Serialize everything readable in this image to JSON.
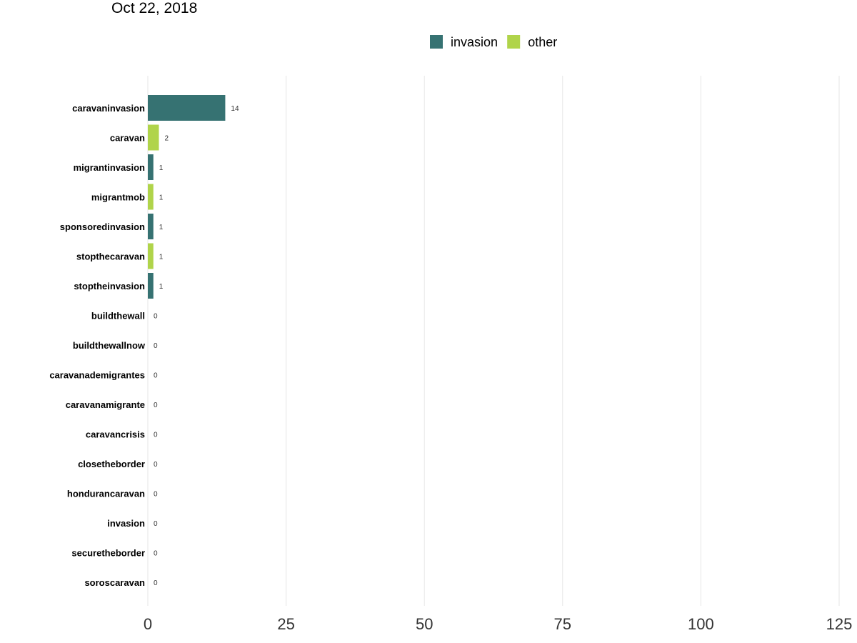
{
  "chart_data": {
    "type": "bar",
    "orientation": "horizontal",
    "title": "Oct 22, 2018",
    "xlim": [
      0,
      125
    ],
    "x_ticks": [
      0,
      25,
      50,
      75,
      100,
      125
    ],
    "grid": "vertical major gridlines",
    "legend_position": "top",
    "series": [
      {
        "name": "invasion",
        "color": "#367272"
      },
      {
        "name": "other",
        "color": "#b0d44a"
      }
    ],
    "bars": [
      {
        "category": "caravaninvasion",
        "value": 14,
        "group": "invasion"
      },
      {
        "category": "caravan",
        "value": 2,
        "group": "other"
      },
      {
        "category": "migrantinvasion",
        "value": 1,
        "group": "invasion"
      },
      {
        "category": "migrantmob",
        "value": 1,
        "group": "other"
      },
      {
        "category": "sponsoredinvasion",
        "value": 1,
        "group": "invasion"
      },
      {
        "category": "stopthecaravan",
        "value": 1,
        "group": "other"
      },
      {
        "category": "stoptheinvasion",
        "value": 1,
        "group": "invasion"
      },
      {
        "category": "buildthewall",
        "value": 0,
        "group": "other"
      },
      {
        "category": "buildthewallnow",
        "value": 0,
        "group": "other"
      },
      {
        "category": "caravanademigrantes",
        "value": 0,
        "group": "other"
      },
      {
        "category": "caravanamigrante",
        "value": 0,
        "group": "other"
      },
      {
        "category": "caravancrisis",
        "value": 0,
        "group": "other"
      },
      {
        "category": "closetheborder",
        "value": 0,
        "group": "other"
      },
      {
        "category": "hondurancaravan",
        "value": 0,
        "group": "other"
      },
      {
        "category": "invasion",
        "value": 0,
        "group": "invasion"
      },
      {
        "category": "securetheborder",
        "value": 0,
        "group": "other"
      },
      {
        "category": "soroscaravan",
        "value": 0,
        "group": "other"
      }
    ]
  }
}
